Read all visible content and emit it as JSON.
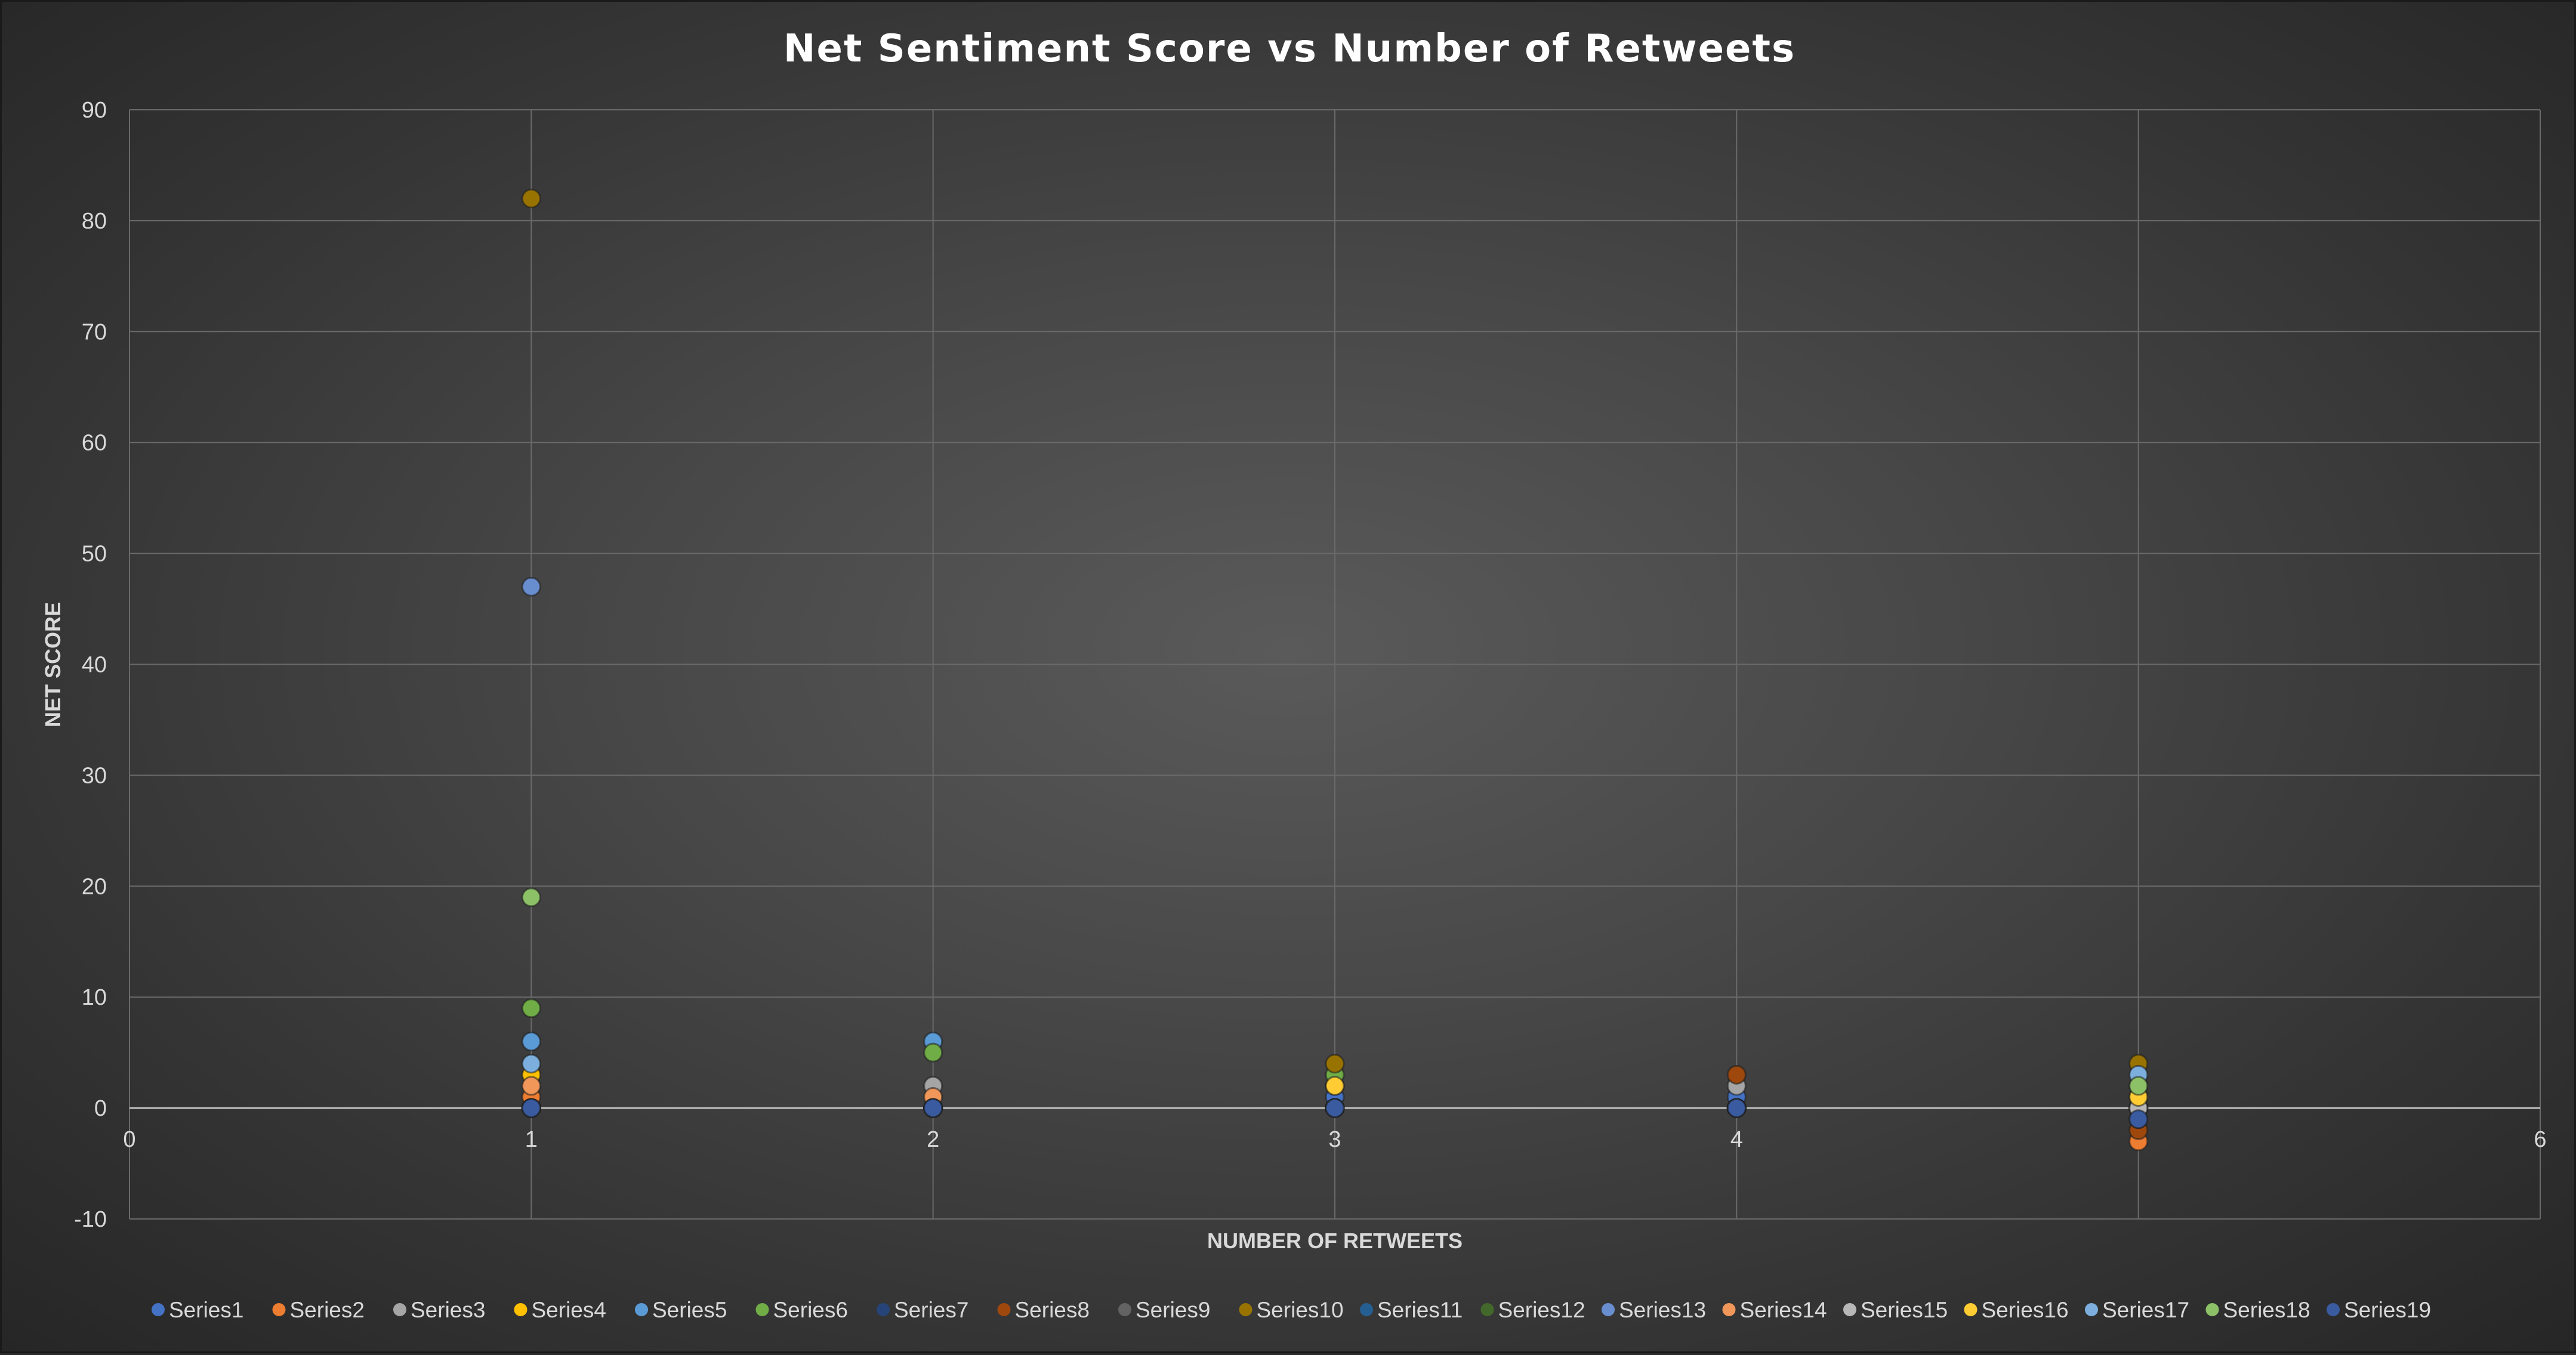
{
  "chart_data": {
    "type": "scatter",
    "title": "Net Sentiment Score vs Number of Retweets",
    "xlabel": "NUMBER OF RETWEETS",
    "ylabel": "NET SCORE",
    "xlim": [
      0,
      6
    ],
    "ylim": [
      -10,
      90
    ],
    "x_ticks": [
      0,
      1,
      2,
      3,
      4,
      5,
      6
    ],
    "y_ticks": [
      -10,
      0,
      10,
      20,
      30,
      40,
      50,
      60,
      70,
      80,
      90
    ],
    "grid": true,
    "legend_position": "bottom",
    "series": [
      {
        "name": "Series1",
        "color": "#4472c4",
        "points": [
          [
            1,
            0
          ],
          [
            2,
            0
          ],
          [
            3,
            1
          ],
          [
            4,
            1
          ],
          [
            5,
            0
          ]
        ]
      },
      {
        "name": "Series2",
        "color": "#ed7d31",
        "points": [
          [
            1,
            1
          ],
          [
            2,
            0
          ],
          [
            3,
            0
          ],
          [
            4,
            0
          ],
          [
            5,
            -3
          ]
        ]
      },
      {
        "name": "Series3",
        "color": "#a5a5a5",
        "points": [
          [
            1,
            0
          ],
          [
            2,
            2
          ],
          [
            3,
            0
          ],
          [
            4,
            2
          ],
          [
            5,
            0
          ]
        ]
      },
      {
        "name": "Series4",
        "color": "#ffc000",
        "points": [
          [
            1,
            3
          ],
          [
            2,
            0
          ],
          [
            3,
            2
          ],
          [
            4,
            0
          ],
          [
            5,
            1
          ]
        ]
      },
      {
        "name": "Series5",
        "color": "#5b9bd5",
        "points": [
          [
            1,
            6
          ],
          [
            2,
            6
          ],
          [
            3,
            0
          ],
          [
            4,
            0
          ],
          [
            5,
            0
          ]
        ]
      },
      {
        "name": "Series6",
        "color": "#70ad47",
        "points": [
          [
            1,
            9
          ],
          [
            2,
            5
          ],
          [
            3,
            3
          ],
          [
            4,
            0
          ],
          [
            5,
            2
          ]
        ]
      },
      {
        "name": "Series7",
        "color": "#264478",
        "points": [
          [
            1,
            0
          ],
          [
            2,
            0
          ],
          [
            3,
            0
          ],
          [
            4,
            0
          ],
          [
            5,
            0
          ]
        ]
      },
      {
        "name": "Series8",
        "color": "#9e480e",
        "points": [
          [
            1,
            0
          ],
          [
            2,
            0
          ],
          [
            3,
            0
          ],
          [
            4,
            3
          ],
          [
            5,
            -2
          ]
        ]
      },
      {
        "name": "Series9",
        "color": "#636363",
        "points": [
          [
            1,
            0
          ],
          [
            2,
            0
          ],
          [
            3,
            0
          ],
          [
            4,
            0
          ],
          [
            5,
            0
          ]
        ]
      },
      {
        "name": "Series10",
        "color": "#997300",
        "points": [
          [
            1,
            82
          ],
          [
            2,
            0
          ],
          [
            3,
            4
          ],
          [
            4,
            0
          ],
          [
            5,
            4
          ]
        ]
      },
      {
        "name": "Series11",
        "color": "#255e91",
        "points": [
          [
            1,
            0
          ],
          [
            2,
            0
          ],
          [
            3,
            0
          ],
          [
            4,
            0
          ],
          [
            5,
            -1
          ]
        ]
      },
      {
        "name": "Series12",
        "color": "#43682b",
        "points": [
          [
            1,
            0
          ],
          [
            2,
            0
          ],
          [
            3,
            0
          ],
          [
            4,
            0
          ],
          [
            5,
            0
          ]
        ]
      },
      {
        "name": "Series13",
        "color": "#698ed0",
        "points": [
          [
            1,
            47
          ],
          [
            2,
            0
          ],
          [
            3,
            0
          ],
          [
            4,
            0
          ],
          [
            5,
            0
          ]
        ]
      },
      {
        "name": "Series14",
        "color": "#f1975a",
        "points": [
          [
            1,
            2
          ],
          [
            2,
            1
          ],
          [
            3,
            0
          ],
          [
            4,
            0
          ],
          [
            5,
            0
          ]
        ]
      },
      {
        "name": "Series15",
        "color": "#b7b7b7",
        "points": [
          [
            1,
            0
          ],
          [
            2,
            0
          ],
          [
            3,
            0
          ],
          [
            4,
            0
          ],
          [
            5,
            0
          ]
        ]
      },
      {
        "name": "Series16",
        "color": "#ffcd33",
        "points": [
          [
            1,
            0
          ],
          [
            2,
            0
          ],
          [
            3,
            2
          ],
          [
            4,
            0
          ],
          [
            5,
            1
          ]
        ]
      },
      {
        "name": "Series17",
        "color": "#7cafdd",
        "points": [
          [
            1,
            4
          ],
          [
            2,
            0
          ],
          [
            3,
            0
          ],
          [
            4,
            0
          ],
          [
            5,
            3
          ]
        ]
      },
      {
        "name": "Series18",
        "color": "#8cc168",
        "points": [
          [
            1,
            19
          ],
          [
            2,
            0
          ],
          [
            3,
            0
          ],
          [
            4,
            0
          ],
          [
            5,
            2
          ]
        ]
      },
      {
        "name": "Series19",
        "color": "#3a5ba0",
        "points": [
          [
            1,
            0
          ],
          [
            2,
            0
          ],
          [
            3,
            0
          ],
          [
            4,
            0
          ],
          [
            5,
            -1
          ]
        ]
      }
    ]
  }
}
